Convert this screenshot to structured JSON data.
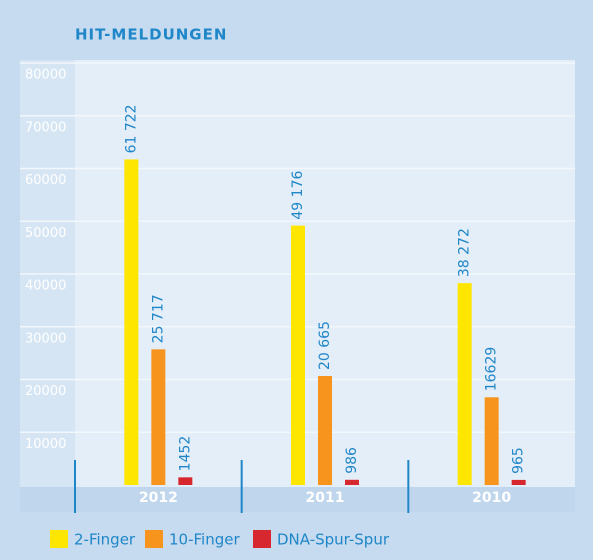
{
  "chart_data": {
    "type": "bar",
    "title": "HIT-MELDUNGEN",
    "categories": [
      "2012",
      "2011",
      "2010"
    ],
    "series": [
      {
        "name": "2-Finger",
        "color": "#ffe600",
        "values": [
          61722,
          49176,
          38272
        ],
        "value_labels": [
          "61 722",
          "49 176",
          "38 272"
        ]
      },
      {
        "name": "10-Finger",
        "color": "#f7941d",
        "values": [
          25717,
          20665,
          16629
        ],
        "value_labels": [
          "25 717",
          "20 665",
          "16629"
        ]
      },
      {
        "name": "DNA-Spur-Spur",
        "color": "#d7282f",
        "values": [
          1452,
          986,
          965
        ],
        "value_labels": [
          "1452",
          "986",
          "965"
        ]
      }
    ],
    "ylim": [
      0,
      80000
    ],
    "yticks": [
      0,
      10000,
      20000,
      30000,
      40000,
      50000,
      60000,
      70000,
      80000
    ],
    "grid": true
  }
}
